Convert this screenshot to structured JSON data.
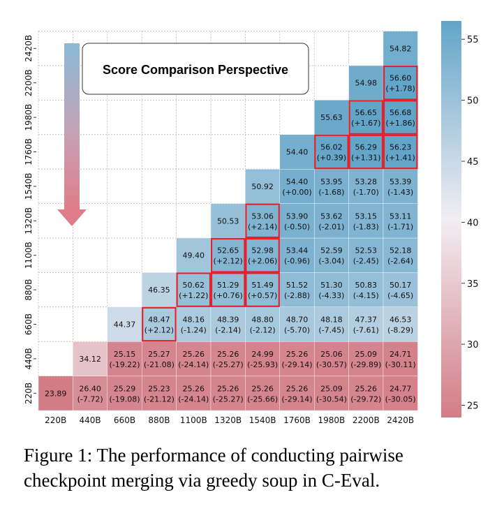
{
  "chart_data": {
    "type": "heatmap",
    "title": "Score Comparison Perspective",
    "x_labels": [
      "220B",
      "440B",
      "660B",
      "880B",
      "1100B",
      "1320B",
      "1540B",
      "1760B",
      "1980B",
      "2200B",
      "2420B"
    ],
    "y_labels": [
      "220B",
      "440B",
      "660B",
      "880B",
      "1100B",
      "1320B",
      "1540B",
      "1760B",
      "1980B",
      "2200B",
      "2420B"
    ],
    "colorbar": {
      "min": 24,
      "max": 56.5,
      "ticks": [
        "25",
        "30",
        "35",
        "40",
        "45",
        "50",
        "55"
      ],
      "tick_values": [
        25,
        30,
        35,
        40,
        45,
        50,
        55
      ]
    },
    "cells": [
      {
        "x": 0,
        "y": 0,
        "value": 23.89
      },
      {
        "x": 1,
        "y": 0,
        "value": 26.4,
        "delta": "(-7.72)"
      },
      {
        "x": 2,
        "y": 0,
        "value": 25.29,
        "delta": "(-19.08)"
      },
      {
        "x": 3,
        "y": 0,
        "value": 25.23,
        "delta": "(-21.12)"
      },
      {
        "x": 4,
        "y": 0,
        "value": 25.26,
        "delta": "(-24.14)"
      },
      {
        "x": 5,
        "y": 0,
        "value": 25.26,
        "delta": "(-25.27)"
      },
      {
        "x": 6,
        "y": 0,
        "value": 25.26,
        "delta": "(-25.66)"
      },
      {
        "x": 7,
        "y": 0,
        "value": 25.26,
        "delta": "(-29.14)"
      },
      {
        "x": 8,
        "y": 0,
        "value": 25.09,
        "delta": "(-30.54)"
      },
      {
        "x": 9,
        "y": 0,
        "value": 25.26,
        "delta": "(-29.72)"
      },
      {
        "x": 10,
        "y": 0,
        "value": 24.77,
        "delta": "(-30.05)"
      },
      {
        "x": 1,
        "y": 1,
        "value": 34.12
      },
      {
        "x": 2,
        "y": 1,
        "value": 25.15,
        "delta": "(-19.22)"
      },
      {
        "x": 3,
        "y": 1,
        "value": 25.27,
        "delta": "(-21.08)"
      },
      {
        "x": 4,
        "y": 1,
        "value": 25.26,
        "delta": "(-24.14)"
      },
      {
        "x": 5,
        "y": 1,
        "value": 25.26,
        "delta": "(-25.27)"
      },
      {
        "x": 6,
        "y": 1,
        "value": 24.99,
        "delta": "(-25.93)"
      },
      {
        "x": 7,
        "y": 1,
        "value": 25.26,
        "delta": "(-29.14)"
      },
      {
        "x": 8,
        "y": 1,
        "value": 25.06,
        "delta": "(-30.57)"
      },
      {
        "x": 9,
        "y": 1,
        "value": 25.09,
        "delta": "(-29.89)"
      },
      {
        "x": 10,
        "y": 1,
        "value": 24.71,
        "delta": "(-30.11)"
      },
      {
        "x": 2,
        "y": 2,
        "value": 44.37
      },
      {
        "x": 3,
        "y": 2,
        "value": 48.47,
        "delta": "(+2.12)",
        "highlight": true
      },
      {
        "x": 4,
        "y": 2,
        "value": 48.16,
        "delta": "(-1.24)"
      },
      {
        "x": 5,
        "y": 2,
        "value": 48.39,
        "delta": "(-2.14)"
      },
      {
        "x": 6,
        "y": 2,
        "value": 48.8,
        "delta": "(-2.12)"
      },
      {
        "x": 7,
        "y": 2,
        "value": 48.7,
        "delta": "(-5.70)"
      },
      {
        "x": 8,
        "y": 2,
        "value": 48.18,
        "delta": "(-7.45)"
      },
      {
        "x": 9,
        "y": 2,
        "value": 47.37,
        "delta": "(-7.61)"
      },
      {
        "x": 10,
        "y": 2,
        "value": 46.53,
        "delta": "(-8.29)"
      },
      {
        "x": 3,
        "y": 3,
        "value": 46.35
      },
      {
        "x": 4,
        "y": 3,
        "value": 50.62,
        "delta": "(+1.22)",
        "highlight": true
      },
      {
        "x": 5,
        "y": 3,
        "value": 51.29,
        "delta": "(+0.76)",
        "highlight": true
      },
      {
        "x": 6,
        "y": 3,
        "value": 51.49,
        "delta": "(+0.57)",
        "highlight": true
      },
      {
        "x": 7,
        "y": 3,
        "value": 51.52,
        "delta": "(-2.88)"
      },
      {
        "x": 8,
        "y": 3,
        "value": 51.3,
        "delta": "(-4.33)"
      },
      {
        "x": 9,
        "y": 3,
        "value": 50.83,
        "delta": "(-4.15)"
      },
      {
        "x": 10,
        "y": 3,
        "value": 50.17,
        "delta": "(-4.65)"
      },
      {
        "x": 4,
        "y": 4,
        "value": 49.4
      },
      {
        "x": 5,
        "y": 4,
        "value": 52.65,
        "delta": "(+2.12)",
        "highlight": true
      },
      {
        "x": 6,
        "y": 4,
        "value": 52.98,
        "delta": "(+2.06)",
        "highlight": true
      },
      {
        "x": 7,
        "y": 4,
        "value": 53.44,
        "delta": "(-0.96)"
      },
      {
        "x": 8,
        "y": 4,
        "value": 52.59,
        "delta": "(-3.04)"
      },
      {
        "x": 9,
        "y": 4,
        "value": 52.53,
        "delta": "(-2.45)"
      },
      {
        "x": 10,
        "y": 4,
        "value": 52.18,
        "delta": "(-2.64)"
      },
      {
        "x": 5,
        "y": 5,
        "value": 50.53
      },
      {
        "x": 6,
        "y": 5,
        "value": 53.06,
        "delta": "(+2.14)",
        "highlight": true
      },
      {
        "x": 7,
        "y": 5,
        "value": 53.9,
        "delta": "(-0.50)"
      },
      {
        "x": 8,
        "y": 5,
        "value": 53.62,
        "delta": "(-2.01)"
      },
      {
        "x": 9,
        "y": 5,
        "value": 53.15,
        "delta": "(-1.83)"
      },
      {
        "x": 10,
        "y": 5,
        "value": 53.11,
        "delta": "(-1.71)"
      },
      {
        "x": 6,
        "y": 6,
        "value": 50.92
      },
      {
        "x": 7,
        "y": 6,
        "value": 54.4,
        "delta": "(+0.00)"
      },
      {
        "x": 8,
        "y": 6,
        "value": 53.95,
        "delta": "(-1.68)"
      },
      {
        "x": 9,
        "y": 6,
        "value": 53.28,
        "delta": "(-1.70)"
      },
      {
        "x": 10,
        "y": 6,
        "value": 53.39,
        "delta": "(-1.43)"
      },
      {
        "x": 7,
        "y": 7,
        "value": 54.4
      },
      {
        "x": 8,
        "y": 7,
        "value": 56.02,
        "delta": "(+0.39)",
        "highlight": true
      },
      {
        "x": 9,
        "y": 7,
        "value": 56.29,
        "delta": "(+1.31)",
        "highlight": true
      },
      {
        "x": 10,
        "y": 7,
        "value": 56.23,
        "delta": "(+1.41)",
        "highlight": true
      },
      {
        "x": 8,
        "y": 8,
        "value": 55.63
      },
      {
        "x": 9,
        "y": 8,
        "value": 56.65,
        "delta": "(+1.67)",
        "highlight": true
      },
      {
        "x": 10,
        "y": 8,
        "value": 56.68,
        "delta": "(+1.86)",
        "highlight": true
      },
      {
        "x": 9,
        "y": 9,
        "value": 54.98
      },
      {
        "x": 10,
        "y": 9,
        "value": 56.6,
        "delta": "(+1.78)",
        "highlight": true
      },
      {
        "x": 10,
        "y": 10,
        "value": 54.82
      }
    ]
  },
  "caption": {
    "line1": "Figure 1:  The performance of conducting pairwise",
    "line2": "checkpoint merging via greedy soup in C-Eval."
  }
}
